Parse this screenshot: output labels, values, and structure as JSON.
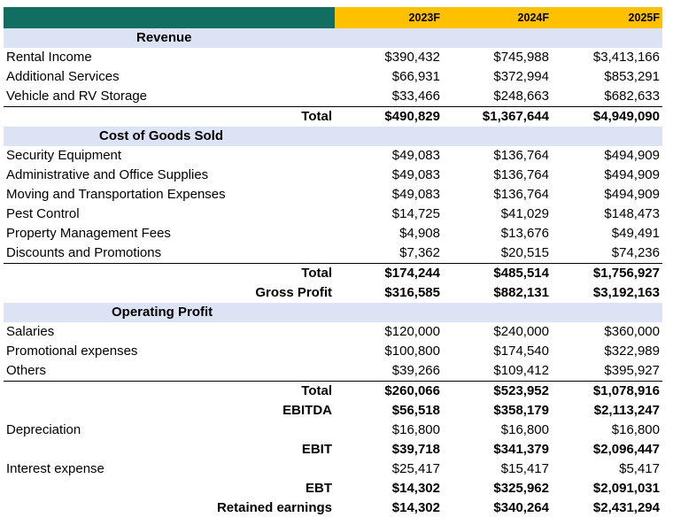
{
  "columns": [
    "2023F",
    "2024F",
    "2025F"
  ],
  "rows": [
    {
      "type": "section",
      "label": "Revenue",
      "indent": 150
    },
    {
      "type": "item",
      "label": "Rental Income",
      "values": [
        "$390,432",
        "$745,988",
        "$3,413,166"
      ]
    },
    {
      "type": "item",
      "label": "Additional Services",
      "values": [
        "$66,931",
        "$372,994",
        "$853,291"
      ]
    },
    {
      "type": "item",
      "label": "Vehicle and RV Storage",
      "values": [
        "$33,466",
        "$248,663",
        "$682,633"
      ]
    },
    {
      "type": "total",
      "label": "Total",
      "values": [
        "$490,829",
        "$1,367,644",
        "$4,949,090"
      ],
      "line": true
    },
    {
      "type": "section",
      "label": "Cost of Goods Sold",
      "indent": 108
    },
    {
      "type": "item",
      "label": "Security Equipment",
      "values": [
        "$49,083",
        "$136,764",
        "$494,909"
      ]
    },
    {
      "type": "item",
      "label": "Administrative and Office Supplies",
      "values": [
        "$49,083",
        "$136,764",
        "$494,909"
      ]
    },
    {
      "type": "item",
      "label": "Moving and Transportation Expenses",
      "values": [
        "$49,083",
        "$136,764",
        "$494,909"
      ]
    },
    {
      "type": "item",
      "label": "Pest Control",
      "values": [
        "$14,725",
        "$41,029",
        "$148,473"
      ]
    },
    {
      "type": "item",
      "label": "Property Management Fees",
      "values": [
        "$4,908",
        "$13,676",
        "$49,491"
      ]
    },
    {
      "type": "item",
      "label": "Discounts and Promotions",
      "values": [
        "$7,362",
        "$20,515",
        "$74,236"
      ]
    },
    {
      "type": "total",
      "label": "Total",
      "values": [
        "$174,244",
        "$485,514",
        "$1,756,927"
      ],
      "line": true
    },
    {
      "type": "total",
      "label": "Gross Profit",
      "values": [
        "$316,585",
        "$882,131",
        "$3,192,163"
      ]
    },
    {
      "type": "section",
      "label": "Operating Profit",
      "indent": 122
    },
    {
      "type": "item",
      "label": "Salaries",
      "values": [
        "$120,000",
        "$240,000",
        "$360,000"
      ]
    },
    {
      "type": "item",
      "label": "Promotional expenses",
      "values": [
        "$100,800",
        "$174,540",
        "$322,989"
      ]
    },
    {
      "type": "item",
      "label": "Others",
      "values": [
        "$39,266",
        "$109,412",
        "$395,927"
      ]
    },
    {
      "type": "total",
      "label": "Total",
      "values": [
        "$260,066",
        "$523,952",
        "$1,078,916"
      ],
      "line": true
    },
    {
      "type": "total",
      "label": "EBITDA",
      "values": [
        "$56,518",
        "$358,179",
        "$2,113,247"
      ]
    },
    {
      "type": "item",
      "label": "Depreciation",
      "values": [
        "$16,800",
        "$16,800",
        "$16,800"
      ]
    },
    {
      "type": "total",
      "label": "EBIT",
      "values": [
        "$39,718",
        "$341,379",
        "$2,096,447"
      ]
    },
    {
      "type": "item",
      "label": "Interest expense",
      "values": [
        "$25,417",
        "$15,417",
        "$5,417"
      ]
    },
    {
      "type": "total",
      "label": "EBT",
      "values": [
        "$14,302",
        "$325,962",
        "$2,091,031"
      ]
    },
    {
      "type": "total",
      "label": "Retained earnings",
      "values": [
        "$14,302",
        "$340,264",
        "$2,431,294"
      ]
    }
  ]
}
